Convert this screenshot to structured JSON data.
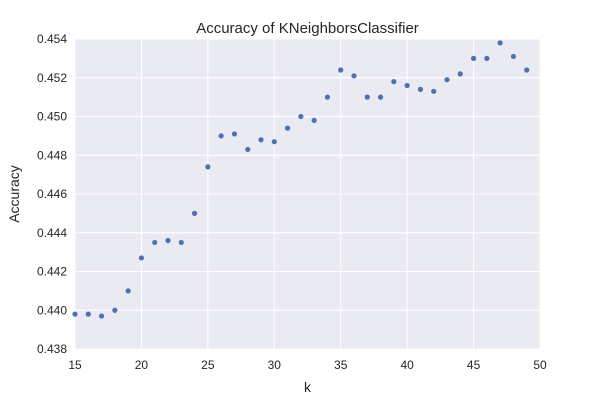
{
  "chart_data": {
    "type": "scatter",
    "title": "Accuracy of KNeighborsClassifier",
    "xlabel": "k",
    "ylabel": "Accuracy",
    "xlim": [
      15,
      50
    ],
    "ylim": [
      0.438,
      0.454
    ],
    "xticks": [
      15,
      20,
      25,
      30,
      35,
      40,
      45,
      50
    ],
    "xtick_labels": [
      "15",
      "20",
      "25",
      "30",
      "35",
      "40",
      "45",
      "50"
    ],
    "yticks": [
      0.438,
      0.44,
      0.442,
      0.444,
      0.446,
      0.448,
      0.45,
      0.452,
      0.454
    ],
    "ytick_labels": [
      "0.438",
      "0.440",
      "0.442",
      "0.444",
      "0.446",
      "0.448",
      "0.450",
      "0.452",
      "0.454"
    ],
    "grid": true,
    "background_color": "#eaeaf2",
    "grid_color": "#ffffff",
    "marker_color": "#4c72b0",
    "x": [
      15,
      16,
      17,
      18,
      19,
      20,
      21,
      22,
      23,
      24,
      25,
      26,
      27,
      28,
      29,
      30,
      31,
      32,
      33,
      34,
      35,
      36,
      37,
      38,
      39,
      40,
      41,
      42,
      43,
      44,
      45,
      46,
      47,
      48,
      49
    ],
    "y": [
      0.4398,
      0.4398,
      0.4397,
      0.44,
      0.441,
      0.4427,
      0.4435,
      0.4436,
      0.4435,
      0.445,
      0.4474,
      0.449,
      0.4491,
      0.4483,
      0.4488,
      0.4487,
      0.4494,
      0.45,
      0.4498,
      0.451,
      0.4524,
      0.4521,
      0.451,
      0.451,
      0.4518,
      0.4516,
      0.4514,
      0.4513,
      0.4519,
      0.4522,
      0.453,
      0.453,
      0.4538,
      0.4531,
      0.4524
    ]
  }
}
